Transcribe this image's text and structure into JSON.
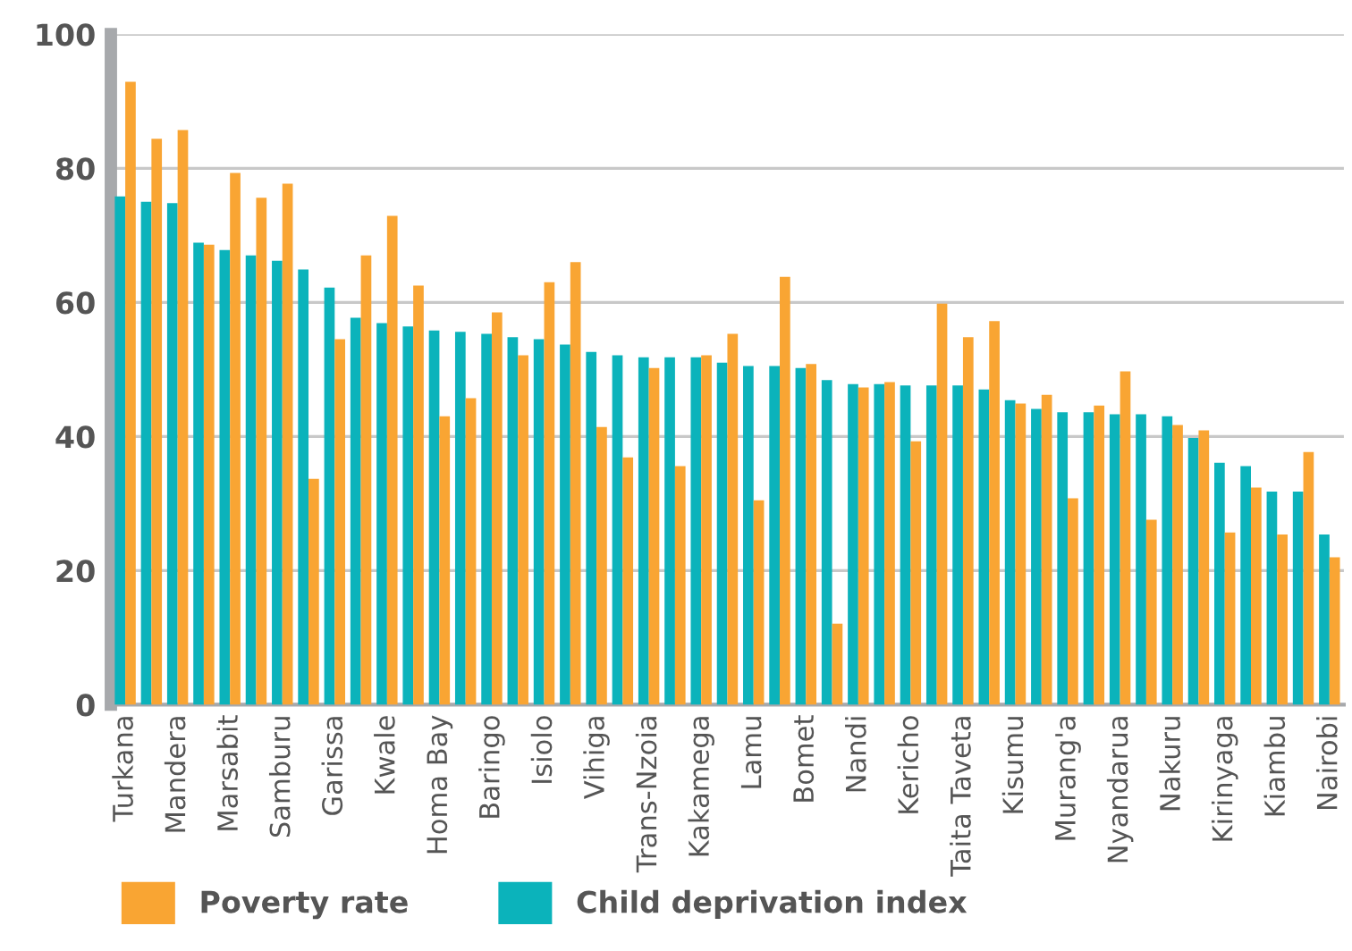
{
  "chart_data": {
    "type": "bar",
    "categories": [
      "Turkana",
      null,
      "Mandera",
      null,
      "Marsabit",
      null,
      "Samburu",
      null,
      "Garissa",
      null,
      "Kwale",
      null,
      "Homa Bay",
      null,
      "Baringo",
      null,
      "Isiolo",
      null,
      "Vihiga",
      null,
      "Trans-Nzoia",
      null,
      "Kakamega",
      null,
      "Lamu",
      null,
      "Bomet",
      null,
      "Nandi",
      null,
      "Kericho",
      null,
      "Taita Taveta",
      null,
      "Kisumu",
      null,
      "Murang'a",
      null,
      "Nyandarua",
      null,
      "Nakuru",
      null,
      "Kirinyaga",
      null,
      "Kiambu",
      null,
      "Nairobi"
    ],
    "series": [
      {
        "name": "Child deprivation index",
        "color": "#0bb3bb",
        "values": [
          75.8,
          75.0,
          74.8,
          68.9,
          67.8,
          67.0,
          66.2,
          64.9,
          62.2,
          57.7,
          56.9,
          56.4,
          55.8,
          55.6,
          55.3,
          54.8,
          54.5,
          53.7,
          52.6,
          52.1,
          51.8,
          51.8,
          51.8,
          51.0,
          50.5,
          50.5,
          50.2,
          48.4,
          47.8,
          47.8,
          47.6,
          47.6,
          47.6,
          47.0,
          45.4,
          44.1,
          43.6,
          43.6,
          43.3,
          43.3,
          43.0,
          39.8,
          36.1,
          35.6,
          31.8,
          31.8,
          25.4
        ]
      },
      {
        "name": "Poverty rate",
        "color": "#f9a533",
        "values": [
          92.9,
          84.4,
          85.7,
          68.6,
          79.3,
          75.6,
          77.7,
          33.7,
          54.5,
          67.0,
          72.9,
          62.5,
          43.0,
          45.7,
          58.5,
          52.1,
          63.0,
          66.0,
          41.4,
          36.9,
          50.2,
          35.6,
          52.1,
          55.3,
          30.5,
          63.8,
          50.8,
          12.1,
          47.3,
          48.1,
          39.3,
          59.8,
          54.8,
          57.2,
          44.9,
          46.2,
          30.8,
          44.6,
          49.7,
          27.6,
          41.7,
          40.9,
          25.7,
          32.4,
          25.4,
          37.7,
          22.0
        ]
      }
    ],
    "ylim": [
      0,
      100
    ],
    "yticks": [
      0,
      20,
      40,
      60,
      80,
      100
    ],
    "grid": "y",
    "legend": "bottom left"
  }
}
